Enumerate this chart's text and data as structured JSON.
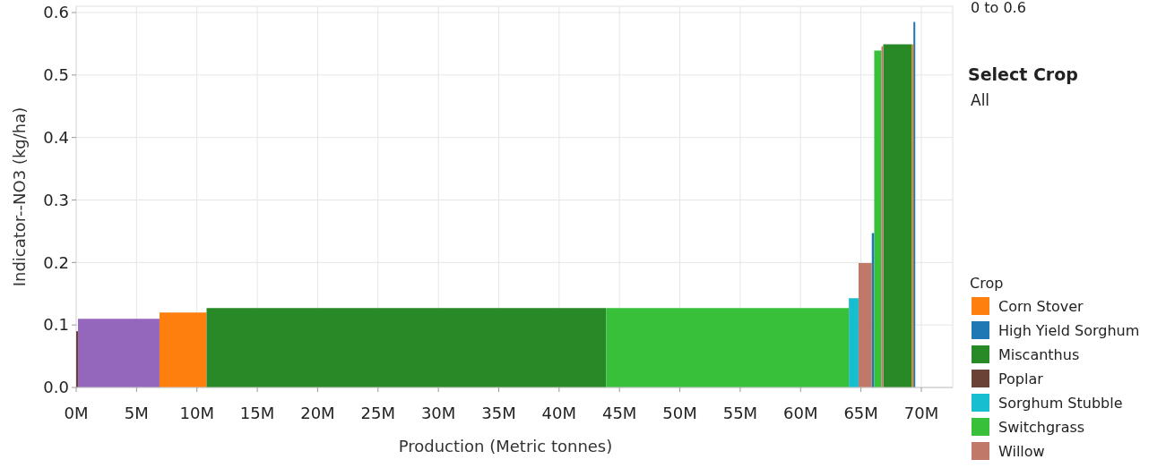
{
  "chart_data": {
    "type": "area",
    "xlabel": "Production (Metric tonnes)",
    "ylabel": "Indicator--NO3 (kg/ha)",
    "legend_title": "Crop",
    "legend": "right",
    "grid": true,
    "annotations": [
      "0 to 0.6",
      "Select Crop",
      "All"
    ],
    "xlim": [
      0,
      72.6
    ],
    "ylim": [
      0,
      0.61
    ],
    "xticks": [
      {
        "value": 0,
        "label": "0M"
      },
      {
        "value": 5,
        "label": "5M"
      },
      {
        "value": 10,
        "label": "10M"
      },
      {
        "value": 15,
        "label": "15M"
      },
      {
        "value": 20,
        "label": "20M"
      },
      {
        "value": 25,
        "label": "25M"
      },
      {
        "value": 30,
        "label": "30M"
      },
      {
        "value": 35,
        "label": "35M"
      },
      {
        "value": 40,
        "label": "40M"
      },
      {
        "value": 45,
        "label": "45M"
      },
      {
        "value": 50,
        "label": "50M"
      },
      {
        "value": 55,
        "label": "55M"
      },
      {
        "value": 60,
        "label": "60M"
      },
      {
        "value": 65,
        "label": "65M"
      },
      {
        "value": 70,
        "label": "70M"
      }
    ],
    "yticks": [
      {
        "value": 0,
        "label": "0.0"
      },
      0.1,
      0.2,
      0.3,
      0.4,
      0.5,
      0.6
    ],
    "series": [
      {
        "name": "Corn Stover",
        "color": "#ff7f0e",
        "x": [
          6.9,
          10.8,
          40,
          69.2,
          69.35
        ],
        "values": [
          0.12,
          0.12,
          null,
          0.549,
          0.549
        ]
      },
      {
        "name": "High Yield Sorghum",
        "color": "#1f77b4",
        "x": [
          65.9,
          66.1,
          67,
          69.35,
          69.5
        ],
        "values": [
          0.247,
          0.247,
          null,
          0.585,
          0.585
        ]
      },
      {
        "name": "Miscanthus",
        "color": "#278a27",
        "x": [
          10.8,
          43.9,
          55,
          66.85,
          69.2
        ],
        "values": [
          0.127,
          0.127,
          null,
          0.549,
          0.549
        ]
      },
      {
        "name": "Poplar",
        "color": "#6b4236",
        "x": [
          0,
          0.15
        ],
        "values": [
          0.09,
          0.09
        ]
      },
      {
        "name": "Sorghum Stubble",
        "color": "#17becf",
        "x": [
          64.0,
          64.8
        ],
        "values": [
          0.143,
          0.143
        ]
      },
      {
        "name": "Switchgrass",
        "color": "#38c03a",
        "x": [
          43.9,
          64.0,
          65,
          66.1,
          66.7
        ],
        "values": [
          0.127,
          0.127,
          null,
          0.539,
          0.539
        ]
      },
      {
        "name": "Willow",
        "color": "#c07868",
        "x": [
          64.8,
          65.9,
          66.3,
          66.7,
          66.85
        ],
        "values": [
          0.199,
          0.199,
          null,
          0.546,
          0.546
        ]
      },
      {
        "color": "#9467bd",
        "x": [
          0.15,
          6.9
        ],
        "values": [
          0.11,
          0.11
        ]
      }
    ]
  }
}
